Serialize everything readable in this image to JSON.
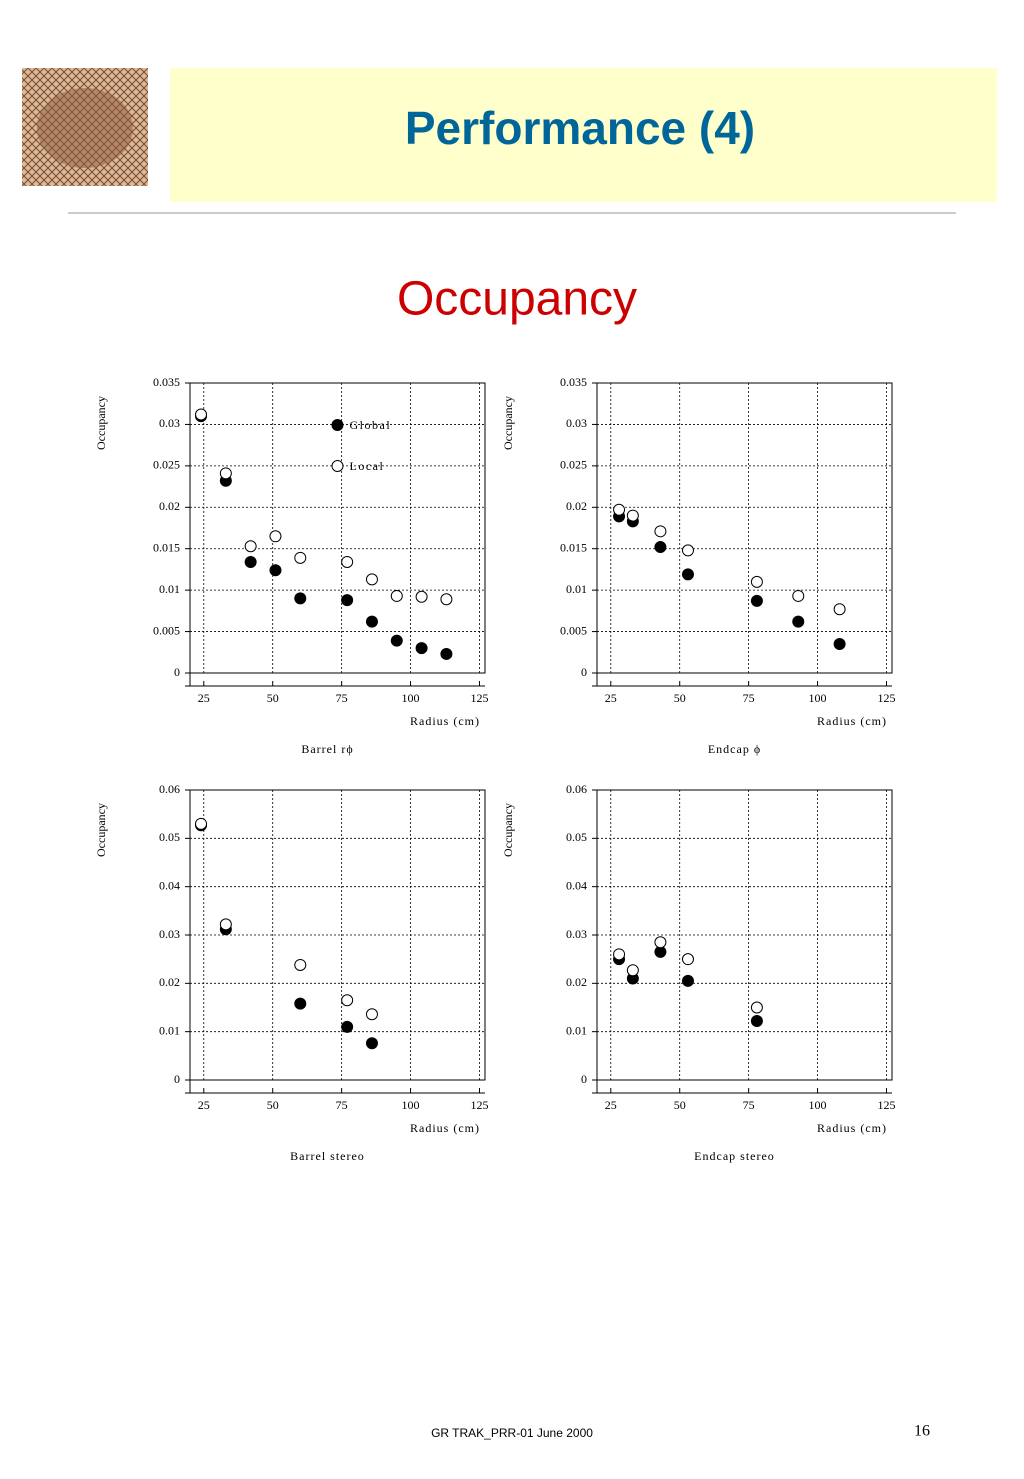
{
  "header": {
    "title": "Performance (4)",
    "subtitle": "Occupancy"
  },
  "footer": {
    "text": "GR TRAK_PRR-01  June 2000",
    "page": "16"
  },
  "chart_data": [
    {
      "type": "scatter",
      "title": "Barrel rϕ",
      "x_label": "Radius (cm)",
      "y_label": "Occupancy",
      "xlim": [
        20,
        127
      ],
      "xticks": [
        25,
        50,
        75,
        100,
        125
      ],
      "ylim": [
        0,
        0.035
      ],
      "yticks": [
        0,
        0.005,
        0.01,
        0.015,
        0.02,
        0.025,
        0.03,
        0.035
      ],
      "grid": true,
      "legend": "upper-center",
      "series": [
        {
          "name": "Global",
          "marker": "filled",
          "color": "#000000",
          "x": [
            24,
            33,
            42,
            51,
            60,
            77,
            86,
            95,
            104,
            113
          ],
          "values": [
            0.031,
            0.0232,
            0.0134,
            0.0124,
            0.009,
            0.0088,
            0.0062,
            0.0039,
            0.003,
            0.0023
          ]
        },
        {
          "name": "Local",
          "marker": "open",
          "color": "#000000",
          "x": [
            24,
            33,
            42,
            51,
            60,
            77,
            86,
            95,
            104,
            113
          ],
          "values": [
            0.0312,
            0.0241,
            0.0153,
            0.0165,
            0.0139,
            0.0134,
            0.0113,
            0.0093,
            0.0092,
            0.0089
          ]
        }
      ]
    },
    {
      "type": "scatter",
      "title": "Endcap ϕ",
      "x_label": "Radius (cm)",
      "y_label": "Occupancy",
      "xlim": [
        20,
        127
      ],
      "xticks": [
        25,
        50,
        75,
        100,
        125
      ],
      "ylim": [
        0,
        0.035
      ],
      "yticks": [
        0,
        0.005,
        0.01,
        0.015,
        0.02,
        0.025,
        0.03,
        0.035
      ],
      "grid": true,
      "series": [
        {
          "marker": "filled",
          "color": "#000000",
          "x": [
            28,
            33,
            43,
            53,
            78,
            93,
            108
          ],
          "values": [
            0.0189,
            0.0183,
            0.0152,
            0.0119,
            0.0087,
            0.0062,
            0.0035
          ]
        },
        {
          "marker": "open",
          "color": "#000000",
          "x": [
            28,
            33,
            43,
            53,
            78,
            93,
            108
          ],
          "values": [
            0.0197,
            0.019,
            0.0171,
            0.0148,
            0.011,
            0.0093,
            0.0077
          ]
        }
      ]
    },
    {
      "type": "scatter",
      "title": "Barrel stereo",
      "x_label": "Radius (cm)",
      "y_label": "Occupancy",
      "xlim": [
        20,
        127
      ],
      "xticks": [
        25,
        50,
        75,
        100,
        125
      ],
      "ylim": [
        0,
        0.06
      ],
      "yticks": [
        0,
        0.01,
        0.02,
        0.03,
        0.04,
        0.05,
        0.06
      ],
      "grid": true,
      "series": [
        {
          "marker": "filled",
          "color": "#000000",
          "x": [
            24,
            33,
            60,
            77,
            86
          ],
          "values": [
            0.0527,
            0.0312,
            0.0158,
            0.011,
            0.0076
          ]
        },
        {
          "marker": "open",
          "color": "#000000",
          "x": [
            24,
            33,
            60,
            77,
            86
          ],
          "values": [
            0.053,
            0.0322,
            0.0238,
            0.0165,
            0.0136
          ]
        }
      ]
    },
    {
      "type": "scatter",
      "title": "Endcap stereo",
      "x_label": "Radius (cm)",
      "y_label": "Occupancy",
      "xlim": [
        20,
        127
      ],
      "xticks": [
        25,
        50,
        75,
        100,
        125
      ],
      "ylim": [
        0,
        0.06
      ],
      "yticks": [
        0,
        0.01,
        0.02,
        0.03,
        0.04,
        0.05,
        0.06
      ],
      "grid": true,
      "series": [
        {
          "marker": "filled",
          "color": "#000000",
          "x": [
            28,
            33,
            43,
            53,
            78
          ],
          "values": [
            0.025,
            0.021,
            0.0265,
            0.0205,
            0.0122
          ]
        },
        {
          "marker": "open",
          "color": "#000000",
          "x": [
            28,
            33,
            43,
            53,
            78
          ],
          "values": [
            0.026,
            0.0227,
            0.0285,
            0.025,
            0.015
          ]
        }
      ]
    }
  ]
}
